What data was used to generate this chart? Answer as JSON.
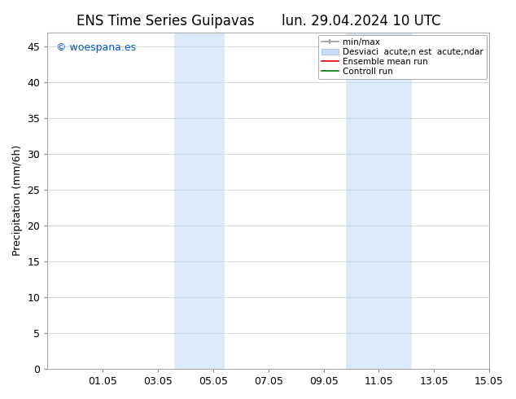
{
  "title_left": "ENS Time Series Guipavas",
  "title_right": "lun. 29.04.2024 10 UTC",
  "ylabel": "Precipitation (mm/6h)",
  "watermark": "© woespana.es",
  "watermark_color": "#0055cc",
  "xtick_labels": [
    "01.05",
    "03.05",
    "05.05",
    "07.05",
    "09.05",
    "11.05",
    "13.05",
    "15.05"
  ],
  "xtick_positions": [
    2,
    4,
    6,
    8,
    10,
    12,
    14,
    16
  ],
  "ylim": [
    0,
    47
  ],
  "ytick_positions": [
    0,
    5,
    10,
    15,
    20,
    25,
    30,
    35,
    40,
    45
  ],
  "background_color": "#ffffff",
  "shaded_color": "#daeaf8",
  "shaded_regions": [
    {
      "x_start": 4.75,
      "x_end": 5.5
    },
    {
      "x_start": 5.5,
      "x_end": 6.25
    },
    {
      "x_start": 11.0,
      "x_end": 11.75
    },
    {
      "x_start": 11.75,
      "x_end": 13.25
    }
  ],
  "font_size_title": 12,
  "font_size_axis": 9,
  "font_size_legend": 7.5,
  "font_size_watermark": 9
}
